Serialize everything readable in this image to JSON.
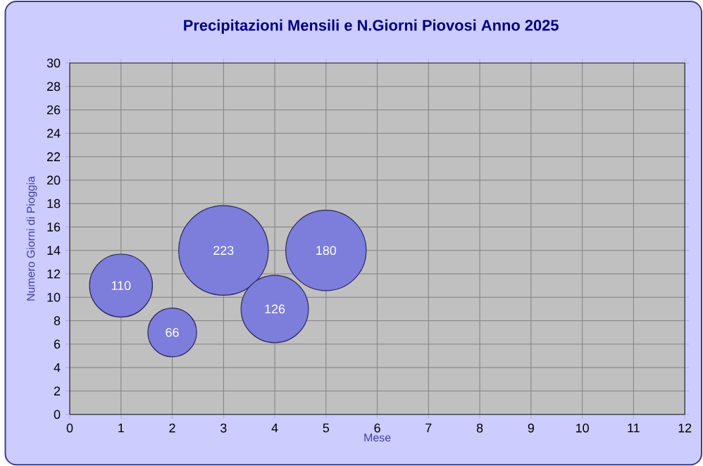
{
  "chart_data": {
    "type": "bubble",
    "title": "Precipitazioni Mensili e N.Giorni Piovosi Anno 2025",
    "xlabel": "Mese",
    "ylabel": "Numero Giorni di Pioggia",
    "x": [
      1,
      2,
      3,
      4,
      5
    ],
    "values": [
      11,
      7,
      14,
      9,
      14
    ],
    "sizes": [
      110,
      66,
      223,
      126,
      180
    ],
    "value_labels": [
      "110",
      "66",
      "223",
      "126",
      "180"
    ],
    "color": "#7d7ddc",
    "xlim": [
      0,
      12
    ],
    "xticks": [
      0,
      1,
      2,
      3,
      4,
      5,
      6,
      7,
      8,
      9,
      10,
      11,
      12
    ],
    "ylim": [
      0,
      30
    ],
    "yticks": [
      0,
      2,
      4,
      6,
      8,
      10,
      12,
      14,
      16,
      18,
      20,
      22,
      24,
      26,
      28,
      30
    ],
    "grid": true
  }
}
